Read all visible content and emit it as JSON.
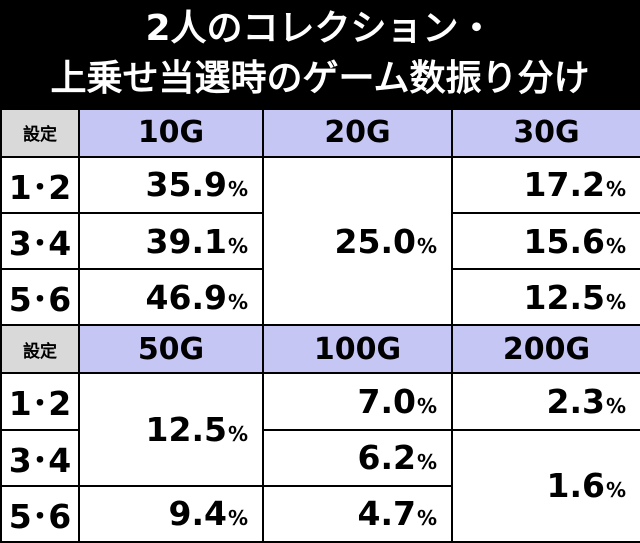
{
  "title": {
    "line1": "2人のコレクション・",
    "line2": "上乗せ当選時のゲーム数振り分け"
  },
  "table1": {
    "headers": [
      "設定",
      "10G",
      "20G",
      "30G"
    ],
    "rows": [
      {
        "label": "1･2",
        "c10": "35.9",
        "c30": "17.2"
      },
      {
        "label": "3･4",
        "c10": "39.1",
        "c30": "15.6"
      },
      {
        "label": "5･6",
        "c10": "46.9",
        "c30": "12.5"
      }
    ],
    "c20_merged": "25.0"
  },
  "table2": {
    "headers": [
      "設定",
      "50G",
      "100G",
      "200G"
    ],
    "rows": [
      {
        "label": "1･2",
        "c100": "7.0",
        "c200": "2.3"
      },
      {
        "label": "3･4",
        "c100": "6.2"
      },
      {
        "label": "5･6",
        "c50": "9.4",
        "c100": "4.7"
      }
    ],
    "c50_merged_12_34": "12.5",
    "c200_merged_34_56": "1.6"
  },
  "unit": "%",
  "colors": {
    "header_bg": "#c6c6f5",
    "setting_header_bg": "#d9d9d9",
    "title_bg": "#000000"
  }
}
